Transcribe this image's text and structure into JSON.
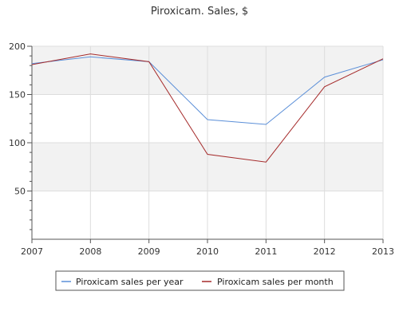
{
  "chart_data": {
    "type": "line",
    "title": "Piroxicam. Sales, $",
    "xlabel": "",
    "ylabel": "",
    "x": [
      "2007",
      "2008",
      "2009",
      "2010",
      "2011",
      "2012",
      "2013"
    ],
    "xlim": [
      2007,
      2013
    ],
    "ylim": [
      0,
      200
    ],
    "yticks": [
      50,
      100,
      150,
      200
    ],
    "grid": "vertical and horizontal, alternating shaded bands",
    "legend_position": "bottom",
    "series": [
      {
        "name": "Piroxicam sales per year",
        "color": "#5b8fd8",
        "values": [
          182,
          189,
          184,
          124,
          119,
          168,
          186
        ]
      },
      {
        "name": "Piroxicam sales per month",
        "color": "#a52a2a",
        "values": [
          181,
          192,
          184,
          88,
          80,
          158,
          187
        ]
      }
    ]
  }
}
